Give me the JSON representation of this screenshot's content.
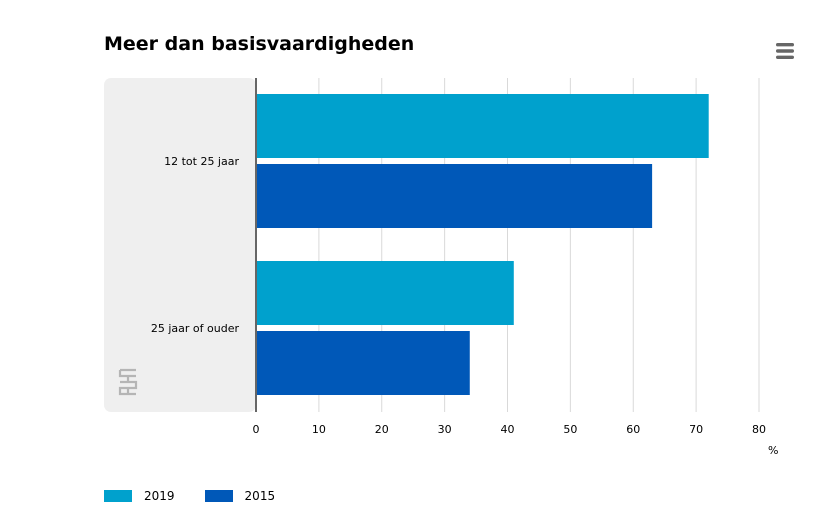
{
  "title": "Meer dan basisvaardigheden",
  "menu": {
    "icon": "hamburger-menu-icon"
  },
  "logo": {
    "icon": "cbs-logo-icon"
  },
  "unit": "%",
  "colors": {
    "series_2019": "#00A1CD",
    "series_2015": "#0058B8",
    "panel": "#EFEFEF",
    "grid": "#D9D9D9",
    "axis": "#666666"
  },
  "chart_data": {
    "type": "bar",
    "orientation": "horizontal",
    "title": "Meer dan basisvaardigheden",
    "categories": [
      "12 tot 25 jaar",
      "25 jaar of ouder"
    ],
    "series": [
      {
        "name": "2019",
        "values": [
          72,
          41
        ]
      },
      {
        "name": "2015",
        "values": [
          63,
          34
        ]
      }
    ],
    "xlabel": "%",
    "ylabel": "",
    "xlim": [
      0,
      80
    ],
    "xticks": [
      "0",
      "10",
      "20",
      "30",
      "40",
      "50",
      "60",
      "70",
      "80"
    ],
    "grid": true,
    "legend": "bottom-left"
  }
}
